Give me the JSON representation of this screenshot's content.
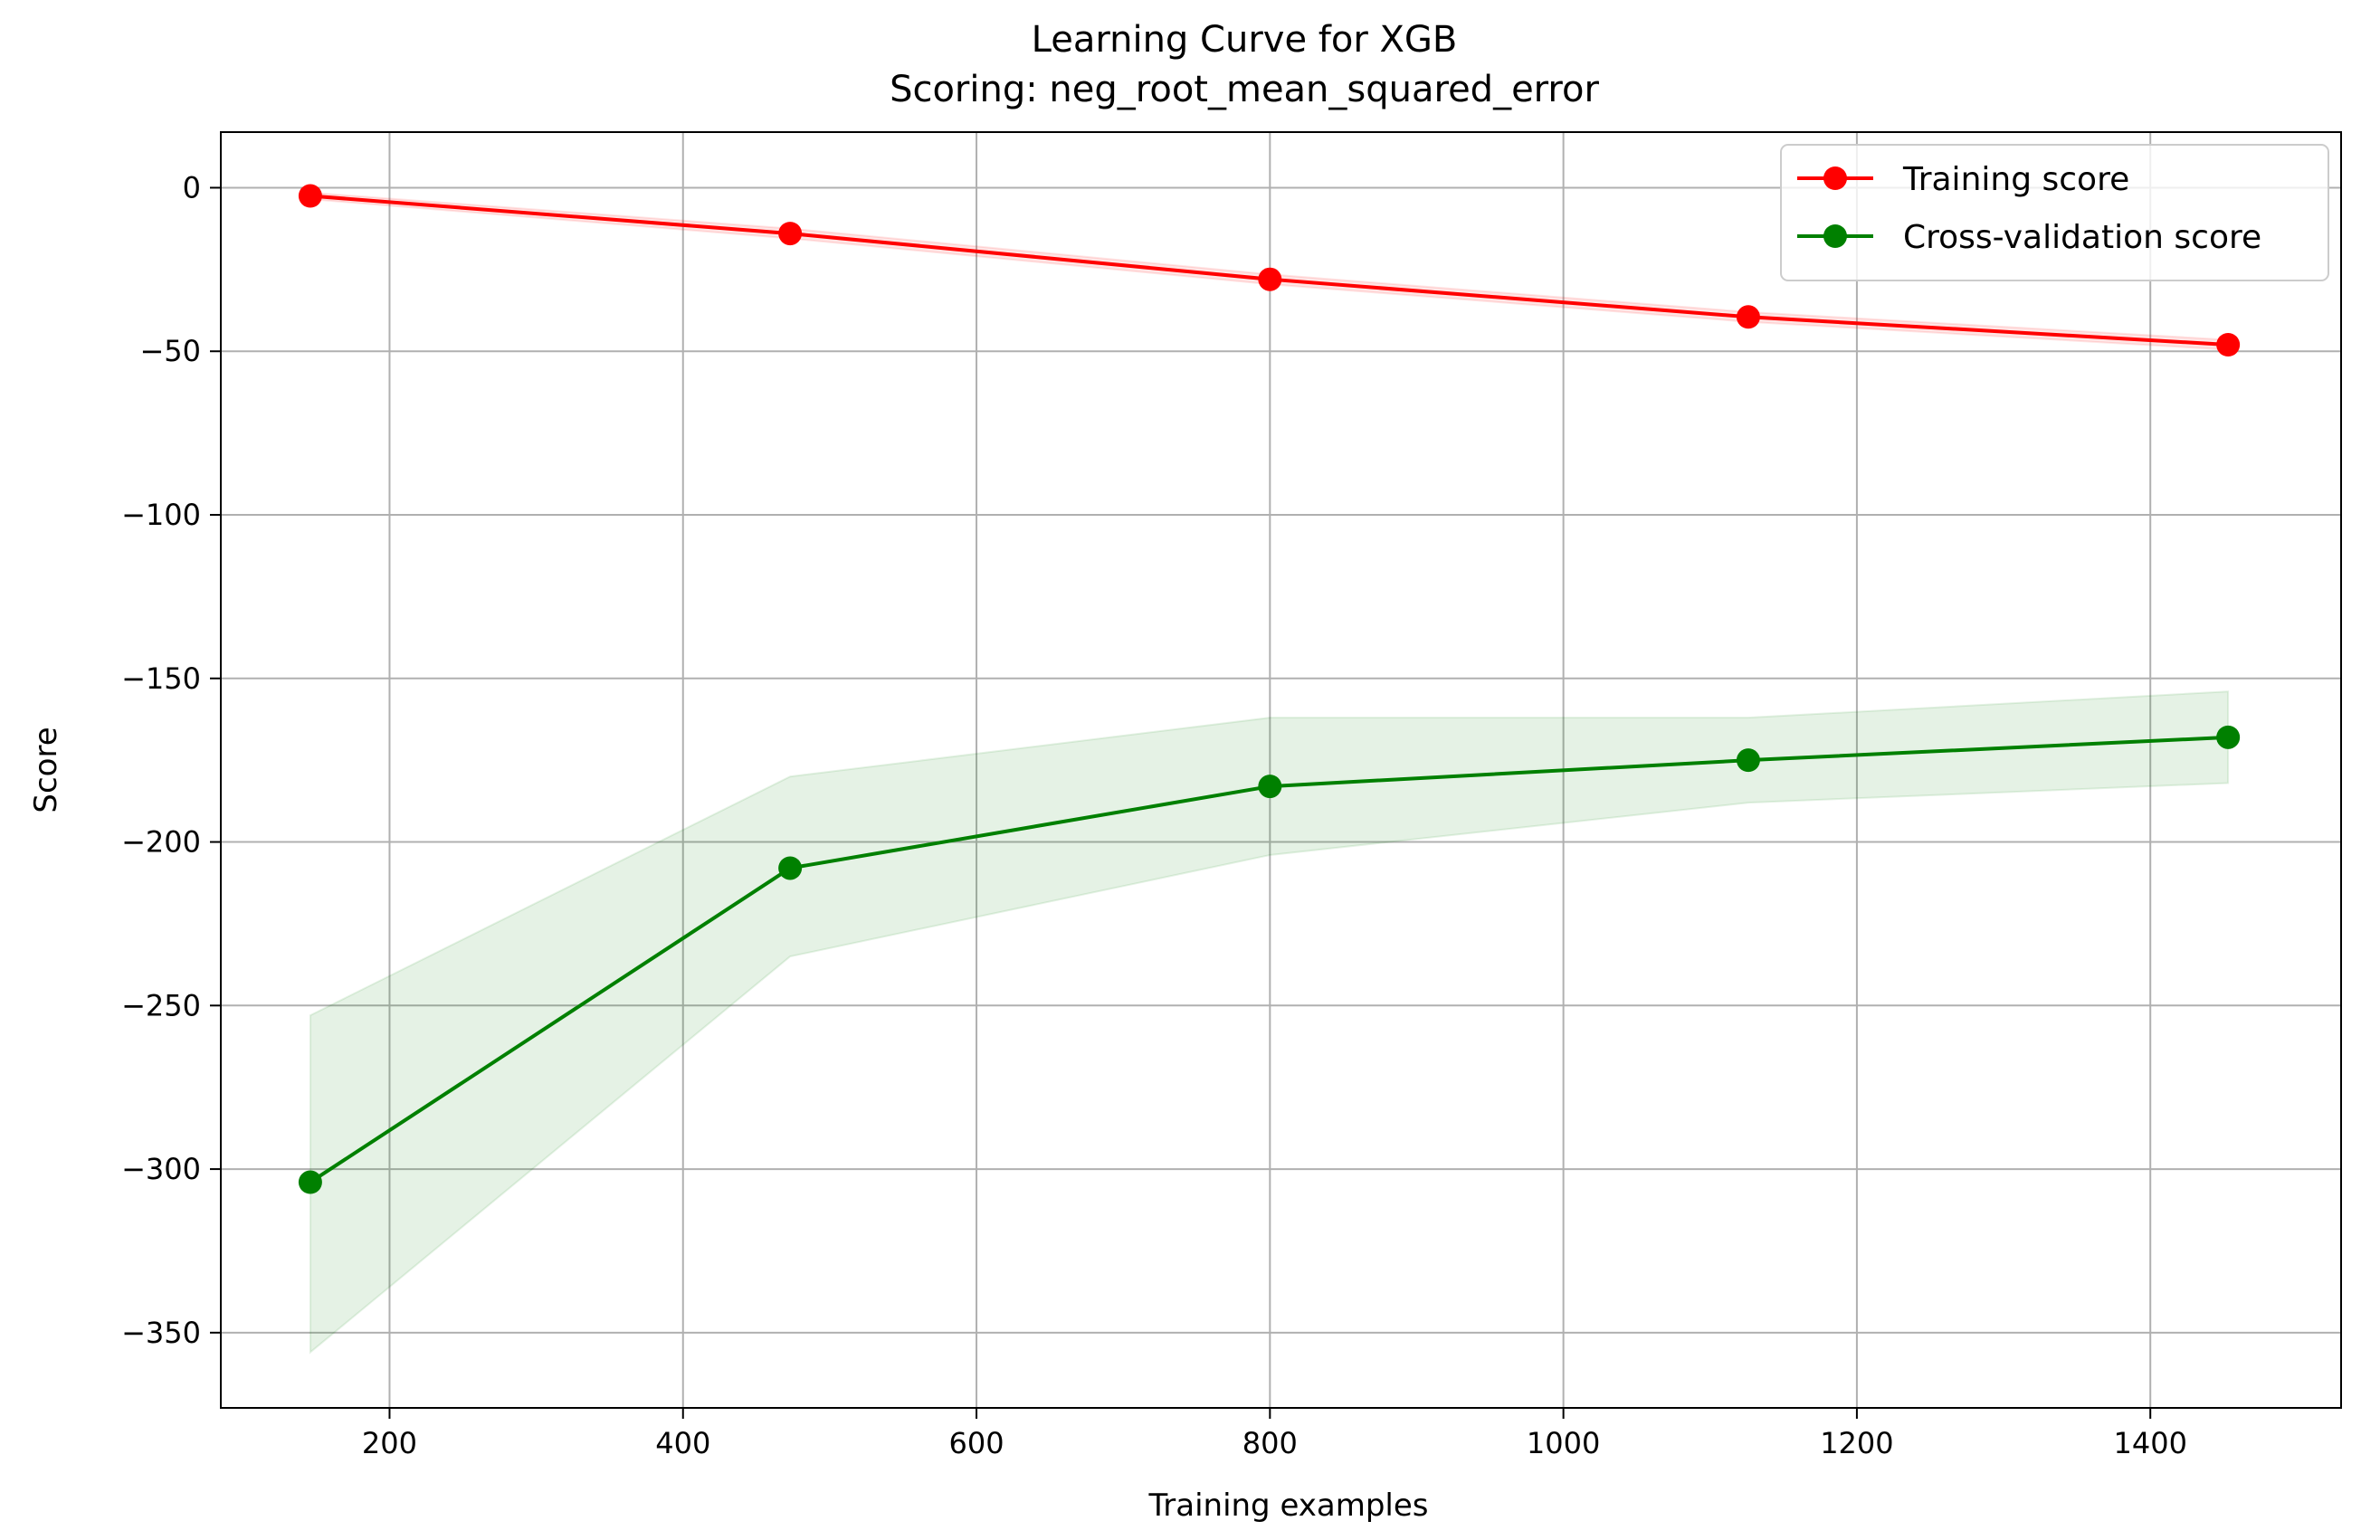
{
  "chart_data": {
    "type": "line",
    "title": "Learning Curve for XGB",
    "subtitle": "Scoring: neg_root_mean_squared_error",
    "xlabel": "Training examples",
    "ylabel": "Score",
    "xlim": [
      85,
      1530
    ],
    "ylim": [
      -373,
      17
    ],
    "xticks": [
      200,
      400,
      600,
      800,
      1000,
      1200,
      1400
    ],
    "yticks": [
      0,
      -50,
      -100,
      -150,
      -200,
      -250,
      -300,
      -350
    ],
    "xtick_labels": [
      "200",
      "400",
      "600",
      "800",
      "1000",
      "1200",
      "1400"
    ],
    "ytick_labels": [
      "0",
      "−50",
      "−100",
      "−150",
      "−200",
      "−250",
      "−300",
      "−350"
    ],
    "grid": true,
    "legend_position": "top-right",
    "x": [
      146,
      473,
      800,
      1126,
      1453
    ],
    "series": [
      {
        "name": "Training score",
        "color": "#ff0000",
        "values": [
          -2.5,
          -14,
          -28,
          -39.5,
          -48
        ],
        "band_upper": [
          -1.5,
          -12.5,
          -26.5,
          -38,
          -46.5
        ],
        "band_lower": [
          -3.5,
          -15.5,
          -29.5,
          -41,
          -49.5
        ]
      },
      {
        "name": "Cross-validation score",
        "color": "#008000",
        "values": [
          -304,
          -208,
          -183,
          -175,
          -168
        ],
        "band_upper": [
          -253,
          -180,
          -162,
          -162,
          -154
        ],
        "band_lower": [
          -356,
          -235,
          -204,
          -188,
          -182
        ]
      }
    ]
  }
}
